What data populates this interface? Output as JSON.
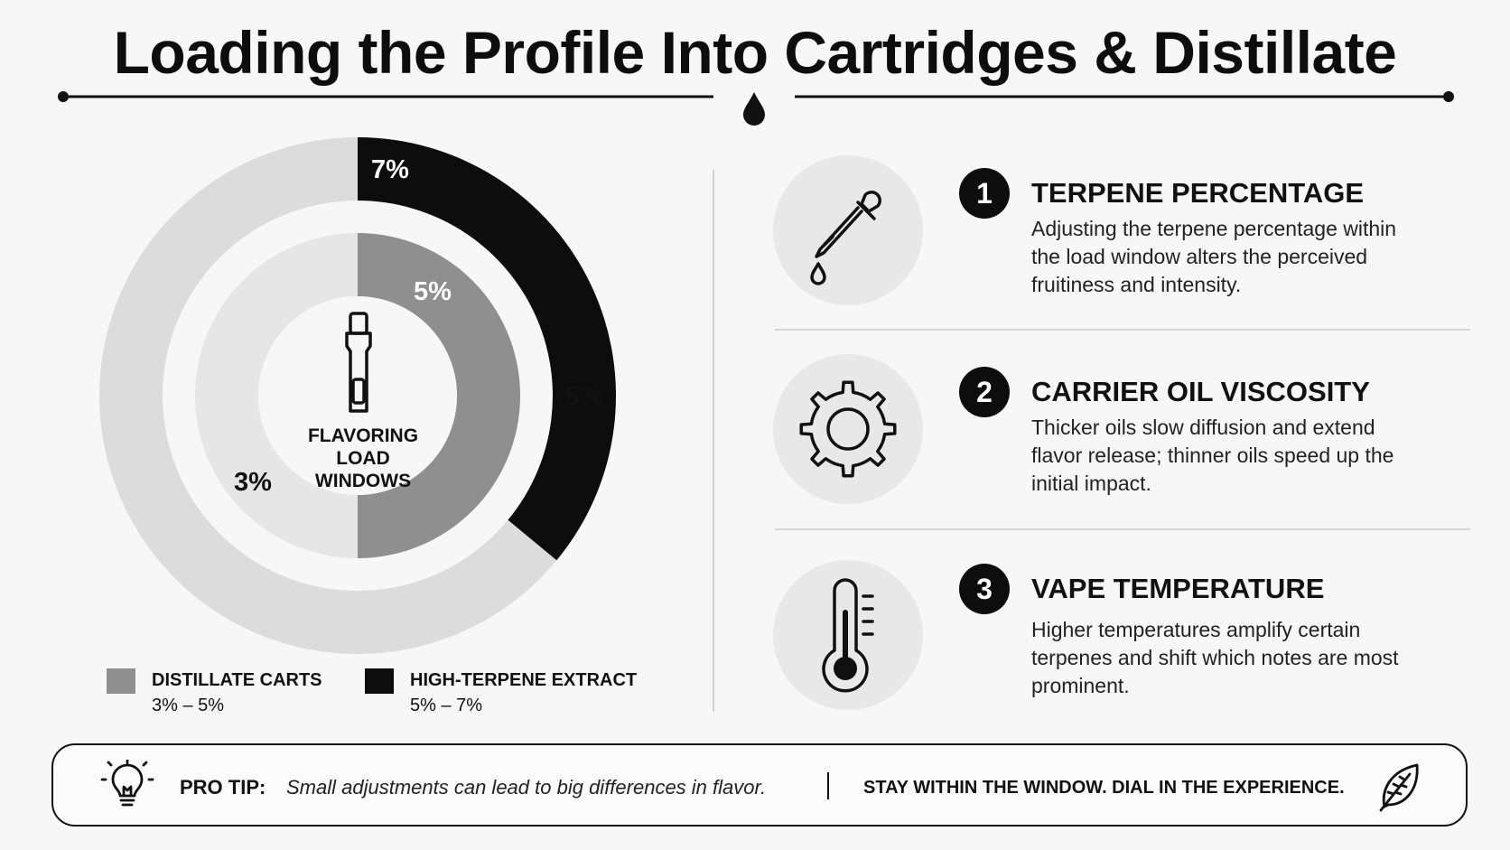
{
  "title": "Loading the Profile Into Cartridges & Distillate",
  "chart_data": {
    "type": "donut",
    "center_label": "FLAVORING LOAD WINDOWS",
    "rings": [
      {
        "name": "HIGH-TERPENE EXTRACT",
        "range": "5% – 7%",
        "low": 5,
        "high": 7,
        "scale_max": 10,
        "low_label": "5%",
        "high_label": "7%",
        "color": "#0d0d0d",
        "track_color": "#dcdcdc"
      },
      {
        "name": "DISTILLATE CARTS",
        "range": "3% – 5%",
        "low": 3,
        "high": 5,
        "scale_max": 10,
        "low_label": "3%",
        "high_label": "5%",
        "color": "#8f8f8f",
        "track_color": "#e6e6e6"
      }
    ]
  },
  "legend": [
    {
      "name": "DISTILLATE CARTS",
      "range": "3% – 5%",
      "color": "#8f8f8f"
    },
    {
      "name": "HIGH-TERPENE EXTRACT",
      "range": "5% – 7%",
      "color": "#0d0d0d"
    }
  ],
  "factors": [
    {
      "number": "1",
      "title": "TERPENE PERCENTAGE",
      "body": "Adjusting the terpene percentage within the load window alters the perceived fruitiness and intensity.",
      "icon": "dropper-icon"
    },
    {
      "number": "2",
      "title": "CARRIER OIL VISCOSITY",
      "body": "Thicker oils slow diffusion and extend flavor release; thinner oils speed up the initial impact.",
      "icon": "gear-icon"
    },
    {
      "number": "3",
      "title": "VAPE TEMPERATURE",
      "body": "Higher temperatures amplify certain terpenes and shift which notes are most prominent.",
      "icon": "thermometer-icon"
    }
  ],
  "tip": {
    "label": "PRO TIP:",
    "text": "Small adjustments can lead to big differences in flavor.",
    "slogan": "STAY WITHIN THE WINDOW. DIAL IN THE EXPERIENCE.",
    "icons": [
      "lightbulb-icon",
      "leaf-icon"
    ]
  }
}
